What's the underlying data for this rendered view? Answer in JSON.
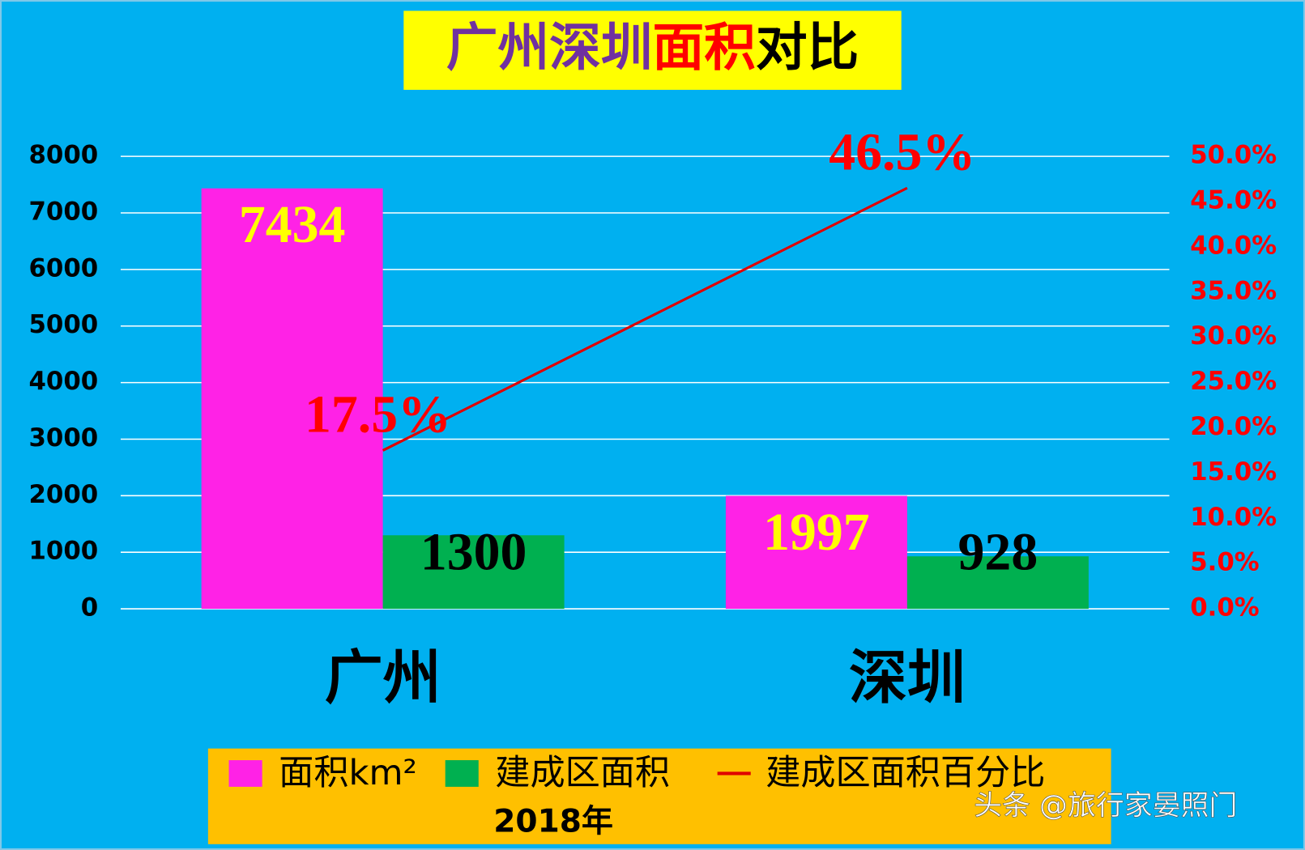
{
  "chart_data": {
    "type": "bar",
    "title_parts": [
      {
        "text": "广州深圳",
        "color": "#7030a0"
      },
      {
        "text": "面积",
        "color": "#ff0000"
      },
      {
        "text": "对比",
        "color": "#000000"
      }
    ],
    "categories": [
      "广州",
      "深圳"
    ],
    "series": [
      {
        "name": "面积km²",
        "type": "bar",
        "color": "#ff22e6",
        "label_color": "#ffff00",
        "values": [
          7434,
          1997
        ]
      },
      {
        "name": "建成区面积",
        "type": "bar",
        "color": "#00b050",
        "label_color": "#000000",
        "values": [
          1300,
          928
        ]
      },
      {
        "name": "建成区面积百分比",
        "type": "line",
        "axis": "y2",
        "color": "#e00000",
        "label_color": "#ff0000",
        "values": [
          17.5,
          46.5
        ],
        "value_labels": [
          "17.5%",
          "46.5%"
        ]
      }
    ],
    "ylim": [
      0,
      8000
    ],
    "yticks": [
      0,
      1000,
      2000,
      3000,
      4000,
      5000,
      6000,
      7000,
      8000
    ],
    "y2lim": [
      0,
      50
    ],
    "y2ticks": [
      {
        "value": 0,
        "label": "0.0%"
      },
      {
        "value": 5,
        "label": "5.0%"
      },
      {
        "value": 10,
        "label": "10.0%"
      },
      {
        "value": 15,
        "label": "15.0%"
      },
      {
        "value": 20,
        "label": "20.0%"
      },
      {
        "value": 25,
        "label": "25.0%"
      },
      {
        "value": 30,
        "label": "30.0%"
      },
      {
        "value": 35,
        "label": "35.0%"
      },
      {
        "value": 40,
        "label": "40.0%"
      },
      {
        "value": 45,
        "label": "45.0%"
      },
      {
        "value": 50,
        "label": "50.0%"
      }
    ],
    "grid": true,
    "legend": "bottom",
    "legend_note": "2018年",
    "watermark": "头条 @旅行家晏照门"
  }
}
